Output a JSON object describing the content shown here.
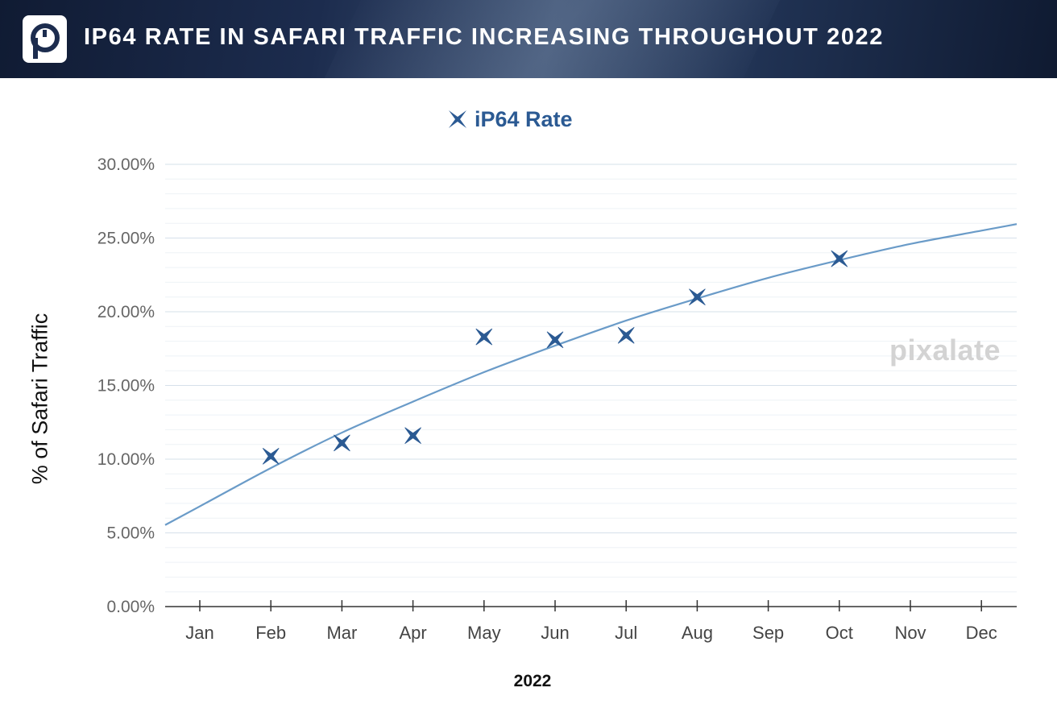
{
  "header": {
    "title": "IP64 RATE IN SAFARI TRAFFIC INCREASING THROUGHOUT 2022",
    "logo_icon": "pixalate-p-logo-icon",
    "background_color": "#1a2a4a"
  },
  "watermark": "pixalate",
  "chart_data": {
    "type": "scatter",
    "title": "IP64 RATE IN SAFARI TRAFFIC INCREASING THROUGHOUT 2022",
    "xlabel": "2022",
    "ylabel": "% of Safari Traffic",
    "categories": [
      "Jan",
      "Feb",
      "Mar",
      "Apr",
      "May",
      "Jun",
      "Jul",
      "Aug",
      "Sep",
      "Oct",
      "Nov",
      "Dec"
    ],
    "yticks": [
      "0.00%",
      "5.00%",
      "10.00%",
      "15.00%",
      "20.00%",
      "25.00%",
      "30.00%"
    ],
    "ylim": [
      0,
      30
    ],
    "legend": {
      "position": "top-center",
      "marker": "x-star",
      "label": "iP64 Rate"
    },
    "grid": true,
    "series": [
      {
        "name": "iP64 Rate",
        "color": "#2b5a93",
        "points": [
          {
            "x": "Feb",
            "y": 10.2
          },
          {
            "x": "Mar",
            "y": 11.1
          },
          {
            "x": "Apr",
            "y": 11.6
          },
          {
            "x": "May",
            "y": 18.3
          },
          {
            "x": "Jun",
            "y": 18.1
          },
          {
            "x": "Jul",
            "y": 18.4
          },
          {
            "x": "Aug",
            "y": 21.0
          },
          {
            "x": "Oct",
            "y": 23.6
          }
        ]
      }
    ],
    "trendline": {
      "color": "#6a9bc8",
      "x": [
        "Jan",
        "Feb",
        "Mar",
        "Apr",
        "May",
        "Jun",
        "Jul",
        "Aug",
        "Sep",
        "Oct",
        "Nov",
        "Dec"
      ],
      "y": [
        6.8,
        9.4,
        11.8,
        13.9,
        15.9,
        17.7,
        19.4,
        20.9,
        22.3,
        23.5,
        24.6,
        25.5
      ]
    }
  }
}
